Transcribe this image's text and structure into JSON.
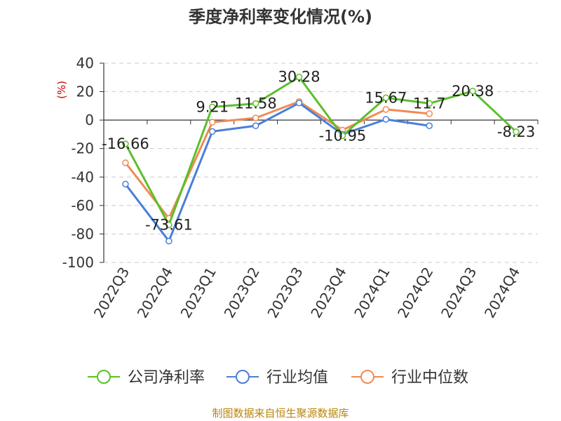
{
  "chart_data": {
    "type": "line",
    "title": "季度净利率变化情况(%)",
    "ylabel": "(%)",
    "ylim": [
      -100,
      40
    ],
    "yticks": [
      40,
      20,
      0,
      -20,
      -40,
      -60,
      -80,
      -100
    ],
    "categories": [
      "2022Q3",
      "2022Q4",
      "2023Q1",
      "2023Q2",
      "2023Q3",
      "2023Q4",
      "2024Q1",
      "2024Q2",
      "2024Q3",
      "2024Q4"
    ],
    "grid": true,
    "legend": "bottom",
    "series": [
      {
        "name": "公司净利率",
        "color": "#5cbf2a",
        "values": [
          -16.66,
          -73.61,
          9.21,
          11.58,
          30.28,
          -10.95,
          15.67,
          11.7,
          20.38,
          -8.23
        ],
        "labels": [
          "-16.66",
          "-73.61",
          "9.21",
          "11.58",
          "30.28",
          "-10.95",
          "15.67",
          "11.7",
          "20.38",
          "-8.23"
        ]
      },
      {
        "name": "行业均值",
        "color": "#4a7fd8",
        "values": [
          -45,
          -85,
          -8,
          -4,
          12,
          -10,
          0.5,
          -4,
          null,
          null
        ]
      },
      {
        "name": "行业中位数",
        "color": "#f08a55",
        "values": [
          -30,
          -69,
          -1.5,
          1.5,
          13,
          -7,
          7.5,
          4.5,
          null,
          null
        ]
      }
    ]
  },
  "footer": {
    "source": "制图数据来自恒生聚源数据库"
  }
}
